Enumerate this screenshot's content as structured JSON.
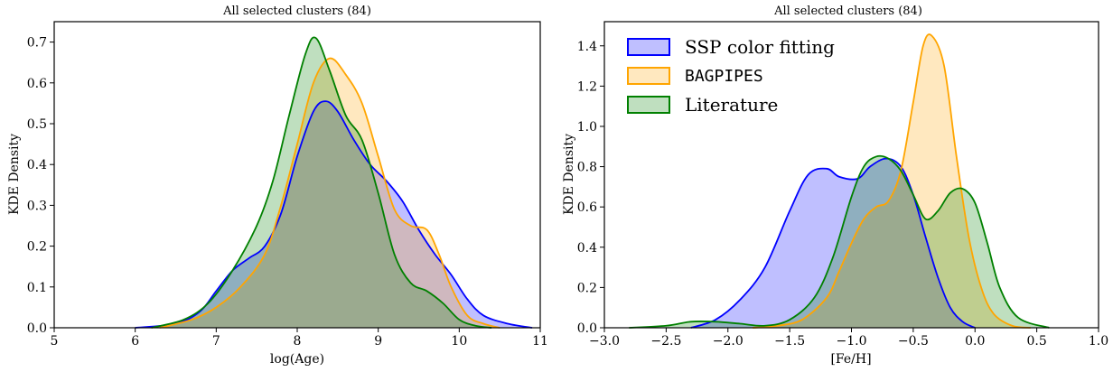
{
  "colors": {
    "ssp": "#0000ff",
    "bagpipes": "#ffa500",
    "literature": "#008000"
  },
  "chart_data": [
    {
      "type": "area",
      "title": "All selected clusters (84)",
      "xlabel": "log(Age)",
      "ylabel": "KDE Density",
      "xlim": [
        5,
        11
      ],
      "ylim": [
        0,
        0.75
      ],
      "xticks": [
        5,
        6,
        7,
        8,
        9,
        10,
        11
      ],
      "xtick_labels": [
        "5",
        "6",
        "7",
        "8",
        "9",
        "10",
        "11"
      ],
      "yticks": [
        0.0,
        0.1,
        0.2,
        0.3,
        0.4,
        0.5,
        0.6,
        0.7
      ],
      "ytick_labels": [
        "0.0",
        "0.1",
        "0.2",
        "0.3",
        "0.4",
        "0.5",
        "0.6",
        "0.7"
      ],
      "grid": false,
      "legend": "none",
      "series": [
        {
          "key": "ssp",
          "x": [
            6.0,
            6.5,
            6.8,
            7.0,
            7.2,
            7.4,
            7.6,
            7.8,
            8.0,
            8.2,
            8.35,
            8.5,
            8.7,
            8.9,
            9.1,
            9.3,
            9.5,
            9.7,
            9.9,
            10.1,
            10.3,
            10.6,
            10.9
          ],
          "y": [
            0.0,
            0.01,
            0.04,
            0.09,
            0.14,
            0.17,
            0.2,
            0.28,
            0.42,
            0.53,
            0.555,
            0.53,
            0.46,
            0.4,
            0.36,
            0.31,
            0.24,
            0.18,
            0.13,
            0.07,
            0.03,
            0.01,
            0.0
          ]
        },
        {
          "key": "bagpipes",
          "x": [
            6.3,
            6.7,
            7.0,
            7.3,
            7.6,
            7.8,
            8.0,
            8.2,
            8.4,
            8.6,
            8.8,
            9.0,
            9.2,
            9.4,
            9.6,
            9.75,
            9.9,
            10.1,
            10.3,
            10.5
          ],
          "y": [
            0.0,
            0.02,
            0.05,
            0.1,
            0.18,
            0.3,
            0.45,
            0.6,
            0.66,
            0.62,
            0.55,
            0.42,
            0.29,
            0.25,
            0.24,
            0.18,
            0.1,
            0.03,
            0.01,
            0.0
          ]
        },
        {
          "key": "literature",
          "x": [
            6.2,
            6.6,
            6.9,
            7.2,
            7.5,
            7.7,
            7.9,
            8.1,
            8.23,
            8.4,
            8.6,
            8.8,
            9.0,
            9.2,
            9.4,
            9.6,
            9.8,
            10.0,
            10.2,
            10.4
          ],
          "y": [
            0.0,
            0.02,
            0.06,
            0.14,
            0.25,
            0.36,
            0.52,
            0.67,
            0.71,
            0.63,
            0.52,
            0.46,
            0.33,
            0.18,
            0.11,
            0.09,
            0.06,
            0.02,
            0.005,
            0.0
          ]
        }
      ]
    },
    {
      "type": "area",
      "title": "All selected clusters (84)",
      "xlabel": "[Fe/H]",
      "ylabel": "KDE Density",
      "xlim": [
        -3.0,
        1.0
      ],
      "ylim": [
        0,
        1.52
      ],
      "xticks": [
        -3.0,
        -2.5,
        -2.0,
        -1.5,
        -1.0,
        -0.5,
        0.0,
        0.5,
        1.0
      ],
      "xtick_labels": [
        "−3.0",
        "−2.5",
        "−2.0",
        "−1.5",
        "−1.0",
        "−0.5",
        "0.0",
        "0.5",
        "1.0"
      ],
      "yticks": [
        0.0,
        0.2,
        0.4,
        0.6,
        0.8,
        1.0,
        1.2,
        1.4
      ],
      "ytick_labels": [
        "0.0",
        "0.2",
        "0.4",
        "0.6",
        "0.8",
        "1.0",
        "1.2",
        "1.4"
      ],
      "grid": false,
      "legend": "top-left",
      "series": [
        {
          "key": "ssp",
          "name": "SSP color fitting",
          "x": [
            -2.3,
            -2.1,
            -1.9,
            -1.7,
            -1.5,
            -1.35,
            -1.2,
            -1.1,
            -0.95,
            -0.85,
            -0.72,
            -0.6,
            -0.5,
            -0.4,
            -0.3,
            -0.2,
            -0.1,
            0.0
          ],
          "y": [
            0.0,
            0.04,
            0.14,
            0.3,
            0.58,
            0.76,
            0.79,
            0.75,
            0.74,
            0.8,
            0.84,
            0.8,
            0.66,
            0.45,
            0.25,
            0.1,
            0.03,
            0.0
          ]
        },
        {
          "key": "bagpipes",
          "name": "BAGPIPES",
          "x": [
            -1.8,
            -1.6,
            -1.4,
            -1.2,
            -1.1,
            -1.0,
            -0.9,
            -0.8,
            -0.7,
            -0.6,
            -0.5,
            -0.42,
            -0.35,
            -0.25,
            -0.15,
            -0.05,
            0.05,
            0.15,
            0.3,
            0.45
          ],
          "y": [
            0.0,
            0.01,
            0.04,
            0.15,
            0.28,
            0.42,
            0.54,
            0.6,
            0.63,
            0.78,
            1.12,
            1.4,
            1.45,
            1.3,
            0.85,
            0.45,
            0.2,
            0.07,
            0.01,
            0.0
          ]
        },
        {
          "key": "literature",
          "name": "Literature",
          "x": [
            -2.8,
            -2.5,
            -2.3,
            -2.1,
            -1.9,
            -1.7,
            -1.5,
            -1.3,
            -1.15,
            -1.0,
            -0.9,
            -0.8,
            -0.7,
            -0.6,
            -0.5,
            -0.4,
            -0.3,
            -0.2,
            -0.1,
            0.0,
            0.1,
            0.2,
            0.35,
            0.6
          ],
          "y": [
            0.0,
            0.01,
            0.03,
            0.03,
            0.02,
            0.01,
            0.04,
            0.15,
            0.35,
            0.65,
            0.8,
            0.85,
            0.84,
            0.78,
            0.66,
            0.54,
            0.58,
            0.67,
            0.69,
            0.62,
            0.42,
            0.2,
            0.05,
            0.0
          ]
        }
      ]
    }
  ]
}
